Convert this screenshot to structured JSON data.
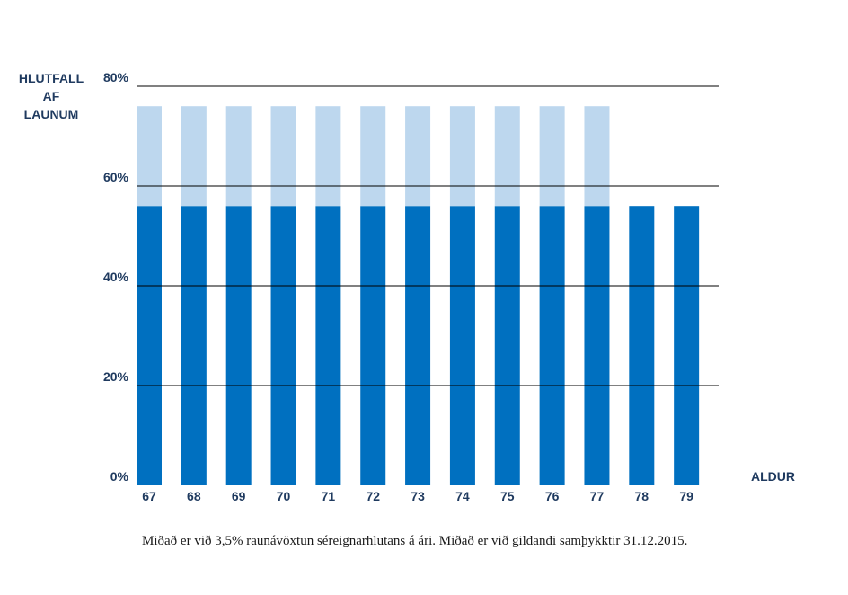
{
  "chart_data": {
    "type": "bar",
    "stacked": true,
    "ylabel_lines": [
      "HLUTFALL",
      "AF",
      "LAUNUM"
    ],
    "xlabel": "ALDUR",
    "categories": [
      "67",
      "68",
      "69",
      "70",
      "71",
      "72",
      "73",
      "74",
      "75",
      "76",
      "77",
      "78",
      "79"
    ],
    "series": [
      {
        "values": [
          56,
          56,
          56,
          56,
          56,
          56,
          56,
          56,
          56,
          56,
          56,
          56,
          56
        ],
        "color": "#0070c0"
      },
      {
        "values": [
          20,
          20,
          20,
          20,
          20,
          20,
          20,
          20,
          20,
          20,
          20,
          0,
          0
        ],
        "color": "#bdd7ee"
      }
    ],
    "ylim": [
      0,
      80
    ],
    "yticks": [
      0,
      20,
      40,
      60,
      80
    ],
    "ytick_labels": [
      "0%",
      "20%",
      "40%",
      "60%",
      "80%"
    ],
    "grid": true,
    "gridline_color": "#000000"
  },
  "footnote": "Miðað er við 3,5% raunávöxtun séreignarhlutans á ári. Miðað er við gildandi samþykktir 31.12.2015."
}
